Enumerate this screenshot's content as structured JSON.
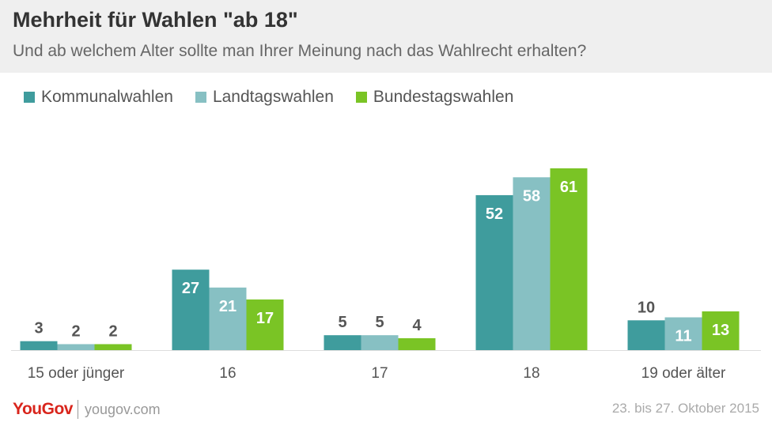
{
  "header": {
    "title": "Mehrheit für Wahlen \"ab 18\"",
    "subtitle": "Und ab welchem Alter sollte man Ihrer Meinung nach das Wahlrecht erhalten?"
  },
  "legend": [
    {
      "label": "Kommunalwahlen",
      "color": "#3f9c9d"
    },
    {
      "label": "Landtagswahlen",
      "color": "#87c0c3"
    },
    {
      "label": "Bundestagswahlen",
      "color": "#7ac425"
    }
  ],
  "chart_data": {
    "type": "bar",
    "categories": [
      "15 oder jünger",
      "16",
      "17",
      "18",
      "19 oder älter"
    ],
    "series": [
      {
        "name": "Kommunalwahlen",
        "values": [
          3,
          27,
          5,
          52,
          10
        ],
        "color": "#3f9c9d"
      },
      {
        "name": "Landtagswahlen",
        "values": [
          2,
          21,
          5,
          58,
          11
        ],
        "color": "#87c0c3"
      },
      {
        "name": "Bundestagswahlen",
        "values": [
          2,
          17,
          4,
          61,
          13
        ],
        "color": "#7ac425"
      }
    ],
    "ylim": [
      0,
      61
    ],
    "title": "Mehrheit für Wahlen \"ab 18\"",
    "xlabel": "",
    "ylabel": ""
  },
  "footer": {
    "logo": "YouGov",
    "url": "yougov.com",
    "date": "23. bis 27. Oktober 2015"
  }
}
